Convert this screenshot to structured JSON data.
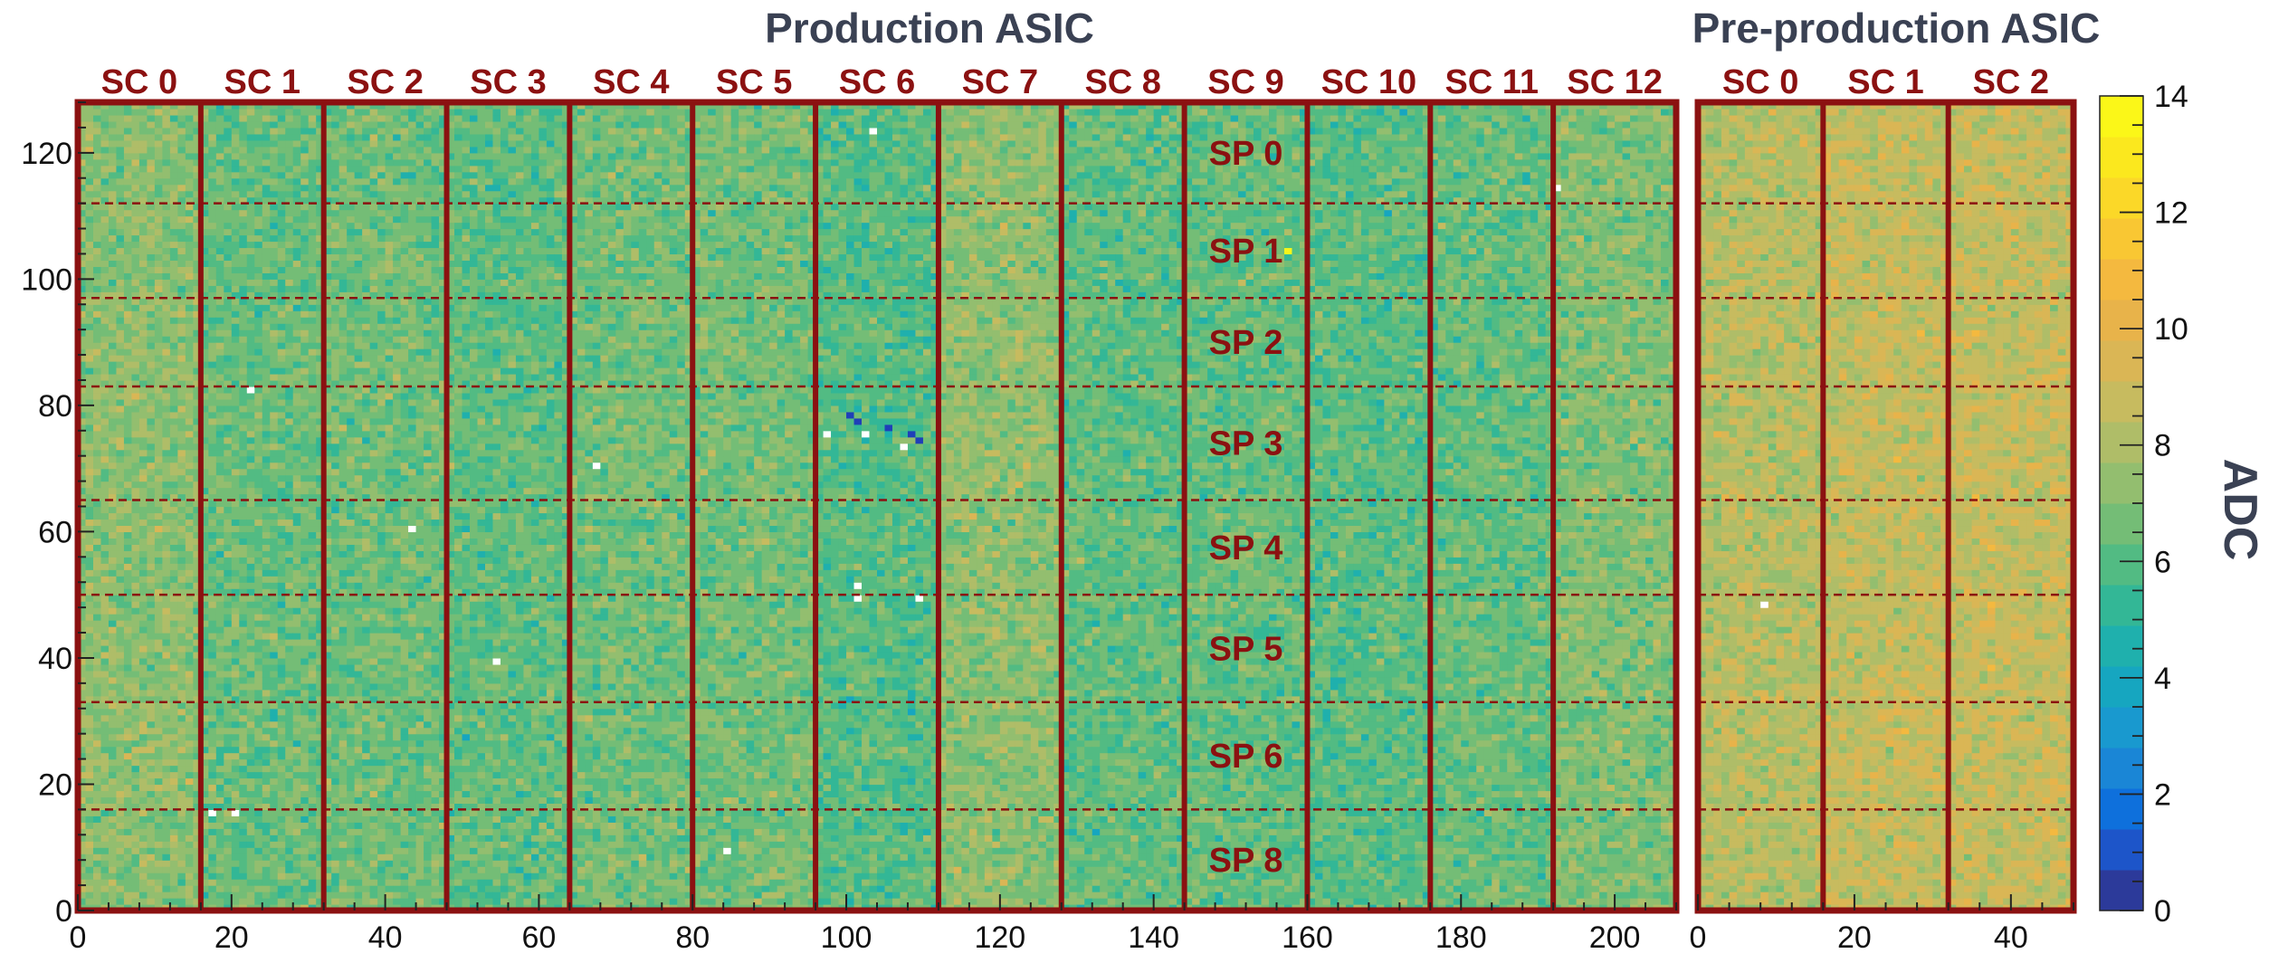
{
  "chart_data": {
    "type": "heatmap",
    "colorbar": {
      "title": "ADC",
      "range": [
        0,
        14
      ],
      "ticks": [
        "0",
        "2",
        "4",
        "6",
        "8",
        "10",
        "12",
        "14"
      ],
      "levels": 20,
      "palette": [
        "#2c3a9a",
        "#1d55c9",
        "#0e70dc",
        "#1a86d6",
        "#1999cf",
        "#16a6c0",
        "#1fb0ad",
        "#33b796",
        "#52bb83",
        "#74bd76",
        "#93be6f",
        "#afbd68",
        "#c7bb5f",
        "#dab655",
        "#e8b34a",
        "#f4b93f",
        "#f9c733",
        "#fbd828",
        "#fbe81e",
        "#fbf718"
      ]
    },
    "panels": [
      {
        "title": "Production ASIC",
        "x_range": [
          0,
          208
        ],
        "y_range": [
          0,
          128
        ],
        "x_ticks": [
          "0",
          "20",
          "40",
          "60",
          "80",
          "100",
          "120",
          "140",
          "160",
          "180",
          "200"
        ],
        "y_ticks": [
          "0",
          "20",
          "40",
          "60",
          "80",
          "100",
          "120"
        ],
        "supercells": [
          "SC 0",
          "SC 1",
          "SC 2",
          "SC 3",
          "SC 4",
          "SC 5",
          "SC 6",
          "SC 7",
          "SC 8",
          "SC 9",
          "SC 10",
          "SC 11",
          "SC 12"
        ],
        "supercell_width": 16,
        "sub_panels": [
          "SP 0",
          "SP 1",
          "SP 2",
          "SP 3",
          "SP 4",
          "SP 5",
          "SP 6",
          "SP 8"
        ],
        "sub_panel_boundaries_y": [
          16,
          33,
          50,
          65,
          83,
          97,
          112
        ],
        "typical_adc": 6.5,
        "dead_pixels": [
          [
            103,
            123
          ],
          [
            192,
            114
          ],
          [
            22,
            82
          ],
          [
            43,
            60
          ],
          [
            67,
            70
          ],
          [
            54,
            39
          ],
          [
            17,
            15
          ],
          [
            20,
            15
          ],
          [
            84,
            9
          ],
          [
            97,
            75
          ],
          [
            102,
            75
          ],
          [
            107,
            73
          ],
          [
            101,
            51
          ],
          [
            101,
            49
          ],
          [
            109,
            49
          ]
        ],
        "low_pixels": [
          [
            100,
            78
          ],
          [
            101,
            77
          ],
          [
            105,
            76
          ],
          [
            108,
            75
          ],
          [
            109,
            74
          ]
        ],
        "hot_pixels": [
          [
            157,
            104
          ]
        ]
      },
      {
        "title": "Pre-production ASIC",
        "x_range": [
          0,
          48
        ],
        "y_range": [
          0,
          128
        ],
        "x_ticks": [
          "0",
          "20",
          "40"
        ],
        "supercells": [
          "SC 0",
          "SC 1",
          "SC 2"
        ],
        "supercell_width": 16,
        "sub_panel_boundaries_y": [
          16,
          33,
          50,
          65,
          83,
          97,
          112
        ],
        "typical_adc": 8.2,
        "dead_pixels": [
          [
            8,
            48
          ]
        ]
      }
    ]
  }
}
